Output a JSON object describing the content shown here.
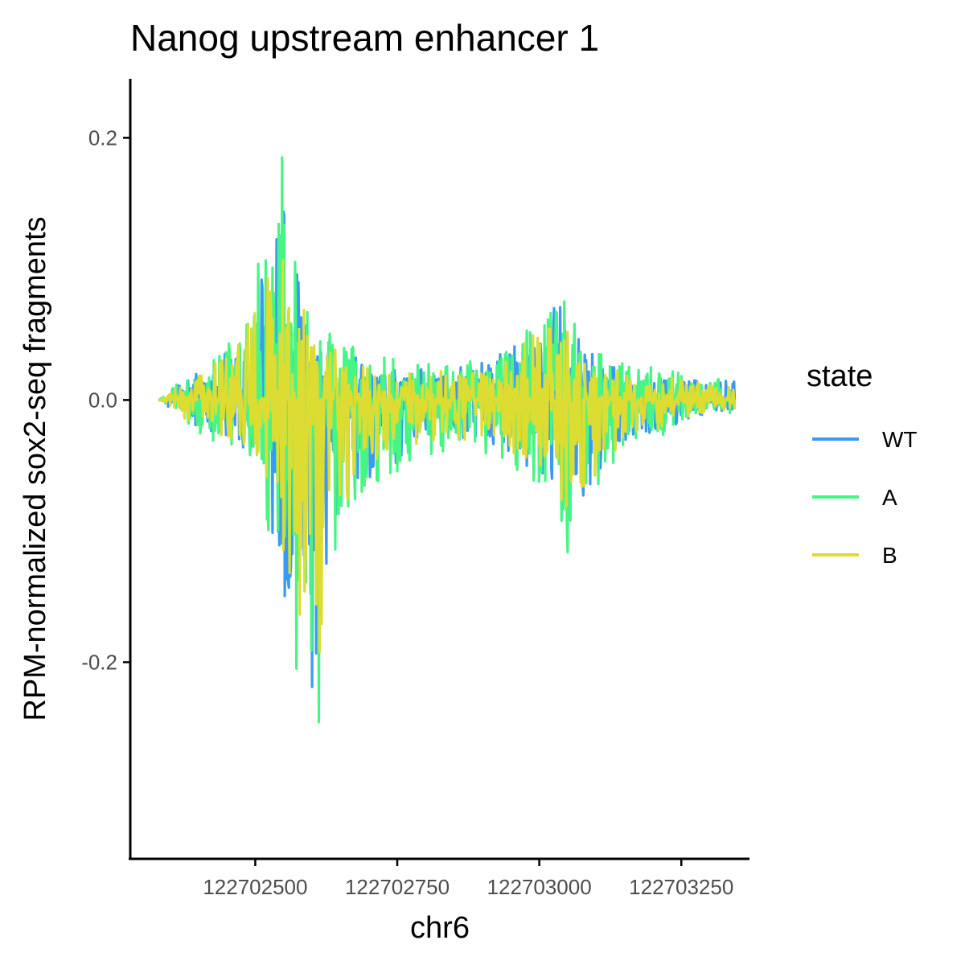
{
  "chart_data": {
    "type": "line",
    "title": "Nanog upstream enhancer 1",
    "xlabel": "chr6",
    "ylabel": "RPM-normalized sox2-seq fragments",
    "xlim": [
      122702280,
      122703370
    ],
    "ylim": [
      -0.35,
      0.245
    ],
    "x_ticks": [
      {
        "value": 122702500,
        "label": "122702500"
      },
      {
        "value": 122702750,
        "label": "122702750"
      },
      {
        "value": 122703000,
        "label": "122703000"
      },
      {
        "value": 122703250,
        "label": "122703250"
      }
    ],
    "y_ticks": [
      {
        "value": 0.2,
        "label": "0.2"
      },
      {
        "value": 0.0,
        "label": "0.0"
      },
      {
        "value": -0.2,
        "label": "-0.2"
      }
    ],
    "grid": false,
    "legend": {
      "title": "state",
      "position": "right",
      "entries": [
        {
          "name": "WT",
          "color": "#3b99f4"
        },
        {
          "name": "A",
          "color": "#47f584"
        },
        {
          "name": "B",
          "color": "#dcdc32"
        }
      ]
    },
    "x_range": [
      122702330,
      122703345
    ],
    "anchors": {
      "positive": [
        [
          122702330,
          0.0
        ],
        [
          122702380,
          0.02
        ],
        [
          122702420,
          0.03
        ],
        [
          122702460,
          0.06
        ],
        [
          122702490,
          0.08
        ],
        [
          122702520,
          0.13
        ],
        [
          122702545,
          0.2
        ],
        [
          122702570,
          0.12
        ],
        [
          122702600,
          0.06
        ],
        [
          122702640,
          0.05
        ],
        [
          122702680,
          0.04
        ],
        [
          122702720,
          0.035
        ],
        [
          122702760,
          0.03
        ],
        [
          122702800,
          0.03
        ],
        [
          122702840,
          0.03
        ],
        [
          122702880,
          0.03
        ],
        [
          122702920,
          0.04
        ],
        [
          122702960,
          0.05
        ],
        [
          122703000,
          0.07
        ],
        [
          122703030,
          0.09
        ],
        [
          122703060,
          0.06
        ],
        [
          122703100,
          0.04
        ],
        [
          122703140,
          0.03
        ],
        [
          122703200,
          0.025
        ],
        [
          122703260,
          0.02
        ],
        [
          122703300,
          0.015
        ],
        [
          122703345,
          0.02
        ]
      ],
      "negative": [
        [
          122702330,
          0.0
        ],
        [
          122702380,
          -0.02
        ],
        [
          122702420,
          -0.03
        ],
        [
          122702460,
          -0.04
        ],
        [
          122702500,
          -0.05
        ],
        [
          122702530,
          -0.12
        ],
        [
          122702560,
          -0.2
        ],
        [
          122702590,
          -0.22
        ],
        [
          122702610,
          -0.32
        ],
        [
          122702630,
          -0.14
        ],
        [
          122702660,
          -0.1
        ],
        [
          122702700,
          -0.07
        ],
        [
          122702740,
          -0.06
        ],
        [
          122702780,
          -0.05
        ],
        [
          122702820,
          -0.04
        ],
        [
          122702860,
          -0.04
        ],
        [
          122702900,
          -0.04
        ],
        [
          122702940,
          -0.05
        ],
        [
          122702980,
          -0.06
        ],
        [
          122703020,
          -0.07
        ],
        [
          122703050,
          -0.12
        ],
        [
          122703080,
          -0.09
        ],
        [
          122703110,
          -0.07
        ],
        [
          122703150,
          -0.04
        ],
        [
          122703200,
          -0.03
        ],
        [
          122703260,
          -0.02
        ],
        [
          122703300,
          -0.01
        ],
        [
          122703345,
          -0.01
        ]
      ]
    },
    "series": [
      {
        "name": "WT",
        "color": "#3b99f4",
        "scale": 0.85,
        "seed": 11
      },
      {
        "name": "A",
        "color": "#47f584",
        "scale": 1.0,
        "seed": 23
      },
      {
        "name": "B",
        "color": "#dcdc32",
        "scale": 0.78,
        "seed": 37
      }
    ]
  }
}
